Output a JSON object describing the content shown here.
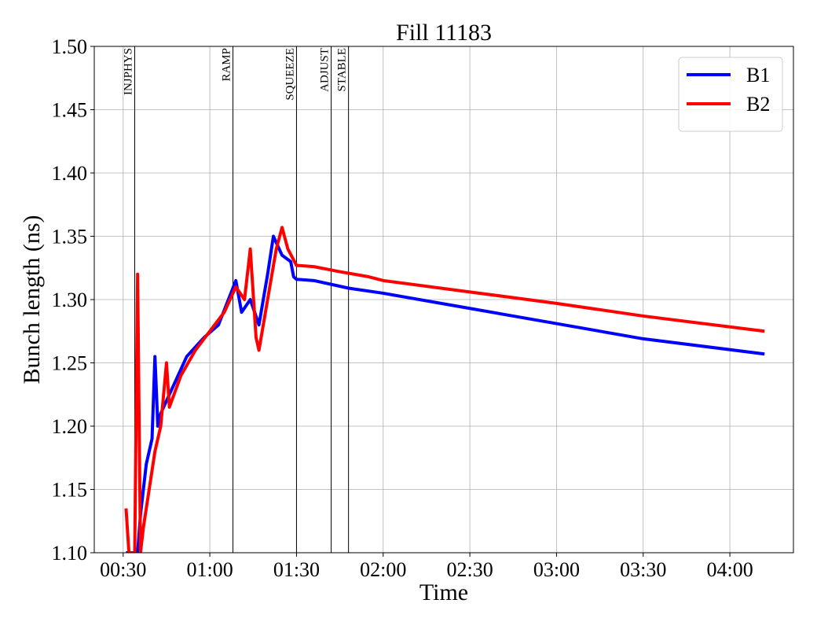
{
  "chart_data": {
    "type": "line",
    "title": "Fill 11183",
    "x_label": "Time",
    "y_label": "Bunch length (ns)",
    "xlim": [
      "00:20",
      "04:22"
    ],
    "xticks": [
      "00:30",
      "01:00",
      "01:30",
      "02:00",
      "02:30",
      "03:00",
      "03:30",
      "04:00"
    ],
    "ylim": [
      1.1,
      1.5
    ],
    "yticks": [
      {
        "value": 1.1,
        "label": "1.10"
      },
      {
        "value": 1.15,
        "label": "1.15"
      },
      {
        "value": 1.2,
        "label": "1.20"
      },
      {
        "value": 1.25,
        "label": "1.25"
      },
      {
        "value": 1.3,
        "label": "1.30"
      },
      {
        "value": 1.35,
        "label": "1.35"
      },
      {
        "value": 1.4,
        "label": "1.40"
      },
      {
        "value": 1.45,
        "label": "1.45"
      },
      {
        "value": 1.5,
        "label": "1.50"
      }
    ],
    "grid": true,
    "legend": "upper right",
    "phases": [
      {
        "label": "INJPHYS",
        "x": "00:34"
      },
      {
        "label": "RAMP",
        "x": "01:08"
      },
      {
        "label": "SQUEEZE",
        "x": "01:30"
      },
      {
        "label": "ADJUST",
        "x": "01:42"
      },
      {
        "label": "STABLE",
        "x": "01:48"
      }
    ],
    "series": [
      {
        "name": "B1",
        "color": "#0000ff",
        "x": [
          "00:31",
          "00:35",
          "00:36",
          "00:38",
          "00:40",
          "00:41",
          "00:42",
          "00:43",
          "00:45",
          "00:48",
          "00:52",
          "00:58",
          "01:03",
          "01:09",
          "01:11",
          "01:14",
          "01:17",
          "01:20",
          "01:22",
          "01:25",
          "01:28",
          "01:29",
          "01:30",
          "01:36",
          "01:48",
          "02:00",
          "02:30",
          "03:00",
          "03:30",
          "04:12"
        ],
        "values": [
          1.1,
          1.1,
          1.13,
          1.17,
          1.19,
          1.255,
          1.2,
          1.21,
          1.22,
          1.235,
          1.255,
          1.27,
          1.28,
          1.315,
          1.29,
          1.3,
          1.28,
          1.32,
          1.35,
          1.335,
          1.33,
          1.318,
          1.316,
          1.315,
          1.309,
          1.305,
          1.293,
          1.281,
          1.269,
          1.257
        ]
      },
      {
        "name": "B2",
        "color": "#ff0000",
        "x": [
          "00:31",
          "00:32",
          "00:34",
          "00:35",
          "00:36",
          "00:37",
          "00:39",
          "00:41",
          "00:43",
          "00:45",
          "00:46",
          "00:50",
          "00:55",
          "01:00",
          "01:05",
          "01:09",
          "01:12",
          "01:14",
          "01:16",
          "01:17",
          "01:20",
          "01:23",
          "01:25",
          "01:27",
          "01:30",
          "01:36",
          "01:45",
          "01:55",
          "02:00",
          "02:30",
          "03:00",
          "03:30",
          "04:12"
        ],
        "values": [
          1.135,
          1.1,
          1.1,
          1.32,
          1.1,
          1.12,
          1.15,
          1.18,
          1.2,
          1.25,
          1.215,
          1.24,
          1.26,
          1.275,
          1.29,
          1.31,
          1.3,
          1.34,
          1.27,
          1.26,
          1.3,
          1.34,
          1.357,
          1.34,
          1.327,
          1.326,
          1.322,
          1.318,
          1.315,
          1.306,
          1.297,
          1.287,
          1.275
        ]
      }
    ]
  }
}
